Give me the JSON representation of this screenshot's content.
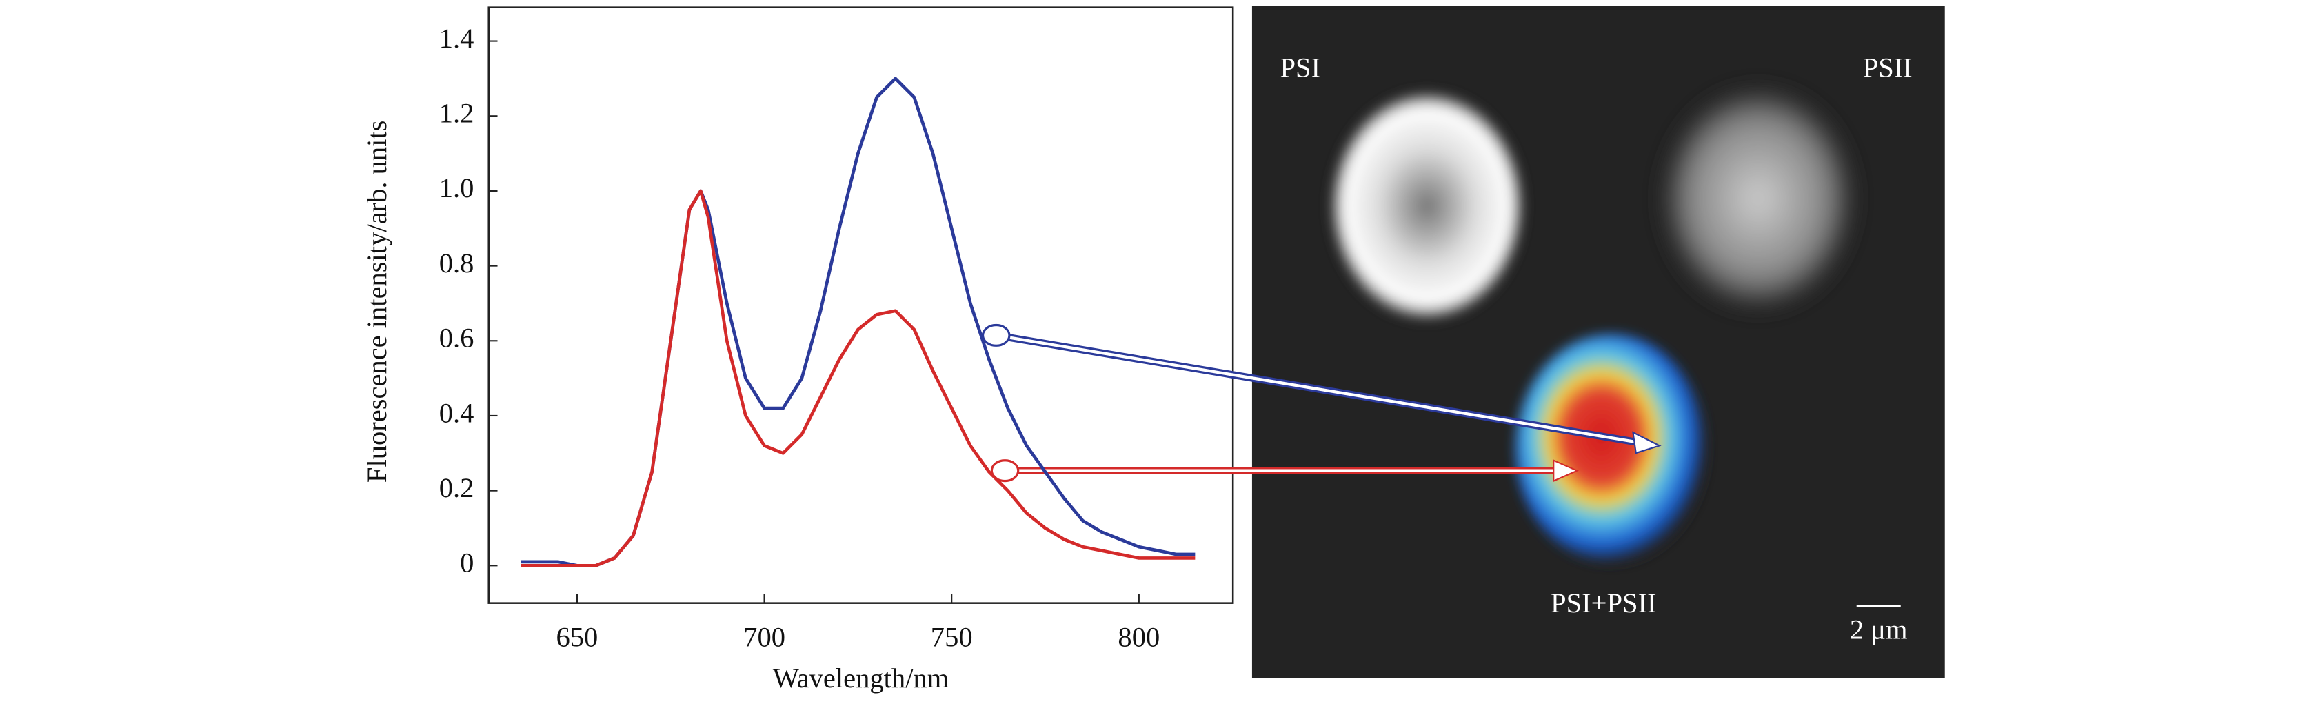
{
  "chart_data": {
    "type": "line",
    "xlabel": "Wavelength/nm",
    "ylabel": "Fluorescence intensity/arb. units",
    "x": [
      635,
      640,
      645,
      650,
      655,
      660,
      665,
      670,
      675,
      680,
      683,
      685,
      690,
      695,
      700,
      705,
      710,
      715,
      720,
      725,
      730,
      735,
      740,
      745,
      750,
      755,
      760,
      765,
      770,
      775,
      780,
      785,
      790,
      795,
      800,
      805,
      810,
      815
    ],
    "series": [
      {
        "color": "#2b3a9a",
        "values": [
          0.01,
          0.01,
          0.01,
          0.0,
          0.0,
          0.02,
          0.08,
          0.25,
          0.6,
          0.95,
          1.0,
          0.95,
          0.7,
          0.5,
          0.42,
          0.42,
          0.5,
          0.68,
          0.9,
          1.1,
          1.25,
          1.3,
          1.25,
          1.1,
          0.9,
          0.7,
          0.55,
          0.42,
          0.32,
          0.25,
          0.18,
          0.12,
          0.09,
          0.07,
          0.05,
          0.04,
          0.03,
          0.03
        ]
      },
      {
        "color": "#d42a2a",
        "values": [
          0.0,
          0.0,
          0.0,
          0.0,
          0.0,
          0.02,
          0.08,
          0.25,
          0.6,
          0.95,
          1.0,
          0.93,
          0.6,
          0.4,
          0.32,
          0.3,
          0.35,
          0.45,
          0.55,
          0.63,
          0.67,
          0.68,
          0.63,
          0.52,
          0.42,
          0.32,
          0.25,
          0.2,
          0.14,
          0.1,
          0.07,
          0.05,
          0.04,
          0.03,
          0.02,
          0.02,
          0.02,
          0.02
        ]
      }
    ],
    "xlim": [
      626.4,
      825.1
    ],
    "ylim": [
      -0.1,
      1.49
    ],
    "xticks": [
      650,
      700,
      750,
      800
    ],
    "yticks": [
      0,
      0.2,
      0.4,
      0.6,
      0.8,
      {
        "value": 1,
        "label": "1.0"
      },
      1.2,
      1.4
    ]
  },
  "image_panel": {
    "labels": [
      "PSI",
      "PSII",
      "PSI+PSII"
    ],
    "scale_bar": "2 μm"
  }
}
